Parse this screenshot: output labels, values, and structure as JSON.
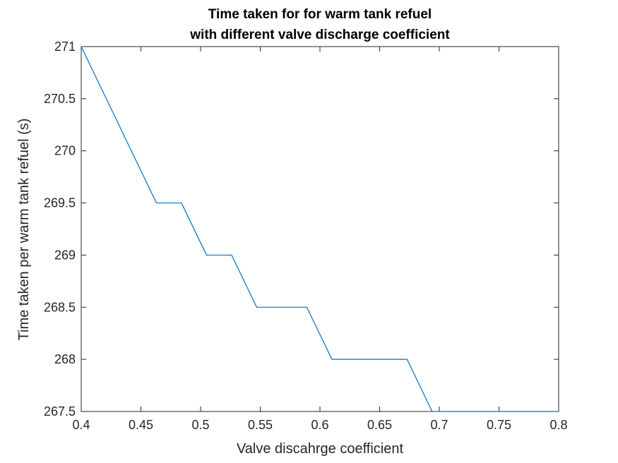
{
  "chart_data": {
    "type": "line",
    "title": [
      "Time taken for for warm tank refuel",
      "with different valve discharge coefficient"
    ],
    "xlabel": "Valve discahrge coefficient",
    "ylabel": "Time taken per warm tank refuel (s)",
    "xlim": [
      0.4,
      0.8
    ],
    "ylim": [
      267.5,
      271
    ],
    "xticks": [
      0.4,
      0.45,
      0.5,
      0.55,
      0.6,
      0.65,
      0.7,
      0.75,
      0.8
    ],
    "xtick_labels": [
      "0.4",
      "0.45",
      "0.5",
      "0.55",
      "0.6",
      "0.65",
      "0.7",
      "0.75",
      "0.8"
    ],
    "yticks": [
      267.5,
      268,
      268.5,
      269,
      269.5,
      270,
      270.5,
      271
    ],
    "ytick_labels": [
      "267.5",
      "268",
      "268.5",
      "269",
      "269.5",
      "270",
      "270.5",
      "271"
    ],
    "grid": false,
    "box": true,
    "series": [
      {
        "color": "#0072bd",
        "x": [
          0.4,
          0.463,
          0.484,
          0.505,
          0.526,
          0.547,
          0.589,
          0.61,
          0.673,
          0.694,
          0.8
        ],
        "y": [
          271,
          269.5,
          269.5,
          269,
          269,
          268.5,
          268.5,
          268,
          268,
          267.5,
          267.5
        ]
      }
    ],
    "colors": {
      "axes": "#262626",
      "line": "#0072bd",
      "background": "#ffffff"
    }
  }
}
